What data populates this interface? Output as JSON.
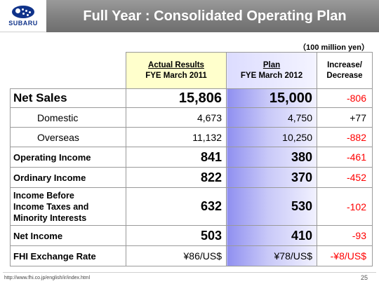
{
  "brand": {
    "logo_text": "SUBARU"
  },
  "title": "Full Year : Consolidated Operating Plan",
  "unit": "（100 million yen）",
  "columns": {
    "actual_line1": "Actual Results",
    "actual_line2": "FYE March 2011",
    "plan_line1": "Plan",
    "plan_line2": "FYE March 2012",
    "inc_line1": "Increase/",
    "inc_line2": "Decrease"
  },
  "rows": [
    {
      "label": "Net Sales",
      "actual": "15,806",
      "plan": "15,000",
      "change": "-806"
    },
    {
      "label": "Domestic",
      "actual": "4,673",
      "plan": "4,750",
      "change": "+77"
    },
    {
      "label": "Overseas",
      "actual": "11,132",
      "plan": "10,250",
      "change": "-882"
    },
    {
      "label": "Operating Income",
      "actual": "841",
      "plan": "380",
      "change": "-461"
    },
    {
      "label": "Ordinary Income",
      "actual": "822",
      "plan": "370",
      "change": "-452"
    },
    {
      "label_lines": [
        "Income Before",
        "Income Taxes and",
        "Minority Interests"
      ],
      "actual": "632",
      "plan": "530",
      "change": "-102"
    },
    {
      "label": "Net Income",
      "actual": "503",
      "plan": "410",
      "change": "-93"
    },
    {
      "label": "FHI Exchange Rate",
      "actual": "¥86/US$",
      "plan": "¥78/US$",
      "change": "-¥8/US$"
    }
  ],
  "colors": {
    "decrease": "#ff0000",
    "increase": "#000000",
    "title_bar": "#808080",
    "brand_blue": "#10338a"
  },
  "footer": {
    "url": "http://www.fhi.co.jp/english/ir/index.html",
    "page": "25"
  }
}
